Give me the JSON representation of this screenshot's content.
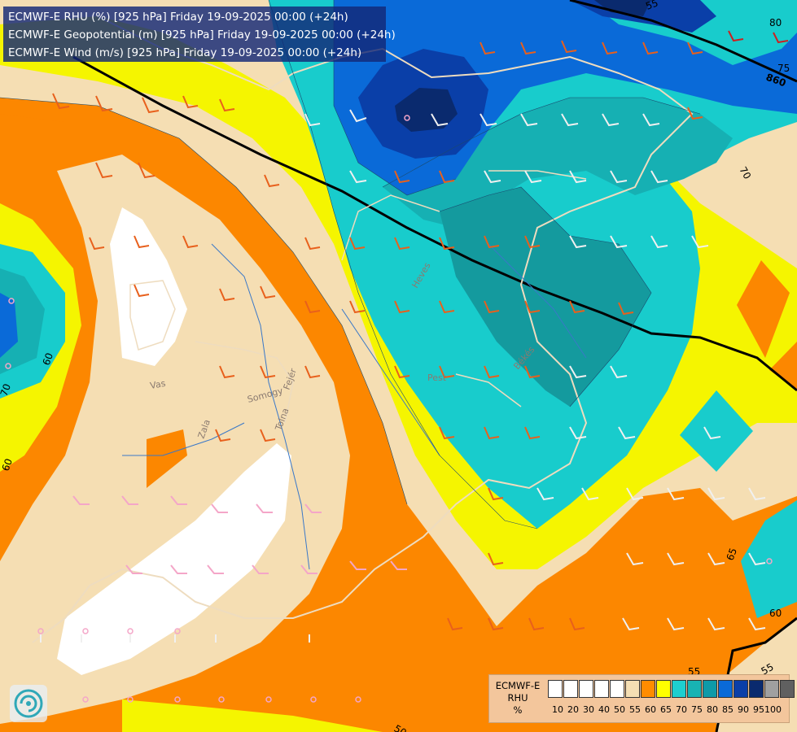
{
  "header": {
    "line1": "ECMWF-E RHU (%) [925 hPa] Friday 19-09-2025 00:00 (+24h)",
    "line2": "ECMWF-E Geopotential (m) [925 hPa] Friday 19-09-2025 00:00 (+24h)",
    "line3": "ECMWF-E Wind (m/s) [925 hPa] Friday 19-09-2025 00:00 (+24h)"
  },
  "contour_labels": {
    "geopotential": "860",
    "rhu": [
      "80",
      "75",
      "70",
      "70",
      "65",
      "60",
      "60",
      "55",
      "55",
      "50",
      "60",
      "55"
    ]
  },
  "place_labels": [
    "Vas",
    "Zala",
    "Somogy",
    "Tolna",
    "Fejér",
    "Heves",
    "Pest",
    "Békés"
  ],
  "legend": {
    "title_line1": "ECMWF-E",
    "title_line2": "RHU",
    "unit": "%",
    "ticks": [
      "10",
      "20",
      "30",
      "40",
      "50",
      "55",
      "60",
      "65",
      "70",
      "75",
      "80",
      "85",
      "90",
      "95",
      "100"
    ],
    "colors": [
      "#ffffff",
      "#ffffff",
      "#ffffff",
      "#ffffff",
      "#ffffff",
      "#f5deb3",
      "#ff8c00",
      "#ffff00",
      "#1ecfcf",
      "#18b3b3",
      "#0f9aa8",
      "#0a6ad8",
      "#0a3fa8",
      "#0a2a6e",
      "#a0a0a0",
      "#606060"
    ]
  },
  "map_colors": {
    "white": "#ffffff",
    "wheat": "#f5deb3",
    "orange": "#fc8700",
    "yellow": "#f5f500",
    "cyan": "#18cccc",
    "teal": "#16b0b3",
    "teal_dark": "#149a9e",
    "blue": "#0a6ad8",
    "blue_dark": "#0a3fa8",
    "navy": "#0a2a6e"
  }
}
